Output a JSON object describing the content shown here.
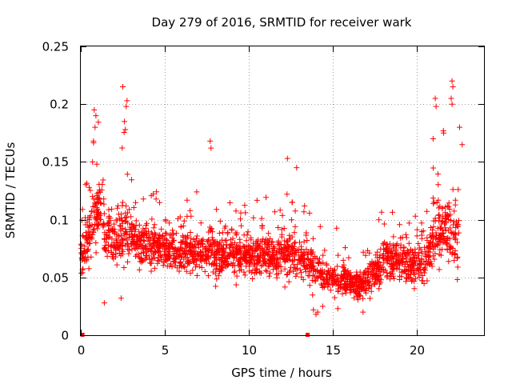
{
  "chart_data": {
    "type": "scatter",
    "title": "Day 279 of 2016, SRMTID for receiver wark",
    "xlabel": "GPS time / hours",
    "ylabel": "SRMTID / TECUs",
    "xlim": [
      0,
      24
    ],
    "ylim": [
      0,
      0.25
    ],
    "x_ticks": [
      0,
      5,
      10,
      15,
      20
    ],
    "x_tick_labels": [
      "0",
      "5",
      "10",
      "15",
      "20"
    ],
    "y_ticks": [
      0,
      0.05,
      0.1,
      0.15,
      0.2,
      0.25
    ],
    "y_tick_labels": [
      "0",
      "0.05",
      "0.1",
      "0.15",
      "0.2",
      "0.25"
    ],
    "grid": true,
    "marker": "+",
    "color": "#ff0000",
    "series": [
      {
        "name": "SRMTID",
        "note": "dense cloud of several thousand points; profile of typical level per hour approximated",
        "profile_x": [
          0,
          0.5,
          1,
          1.5,
          2,
          2.5,
          3,
          3.5,
          4,
          5,
          6,
          7,
          8,
          9,
          10,
          11,
          12,
          13,
          13.8,
          14.5,
          15,
          16,
          17,
          17.5,
          18,
          19,
          20,
          20.5,
          21,
          21.5,
          22,
          22.5
        ],
        "profile_y": [
          0.07,
          0.085,
          0.11,
          0.09,
          0.08,
          0.09,
          0.085,
          0.08,
          0.078,
          0.075,
          0.072,
          0.072,
          0.07,
          0.07,
          0.068,
          0.07,
          0.07,
          0.068,
          0.06,
          0.052,
          0.05,
          0.045,
          0.045,
          0.055,
          0.065,
          0.065,
          0.06,
          0.06,
          0.085,
          0.09,
          0.09,
          0.08
        ],
        "spread_y": [
          0.03,
          0.04,
          0.05,
          0.04,
          0.035,
          0.05,
          0.035,
          0.03,
          0.03,
          0.028,
          0.028,
          0.03,
          0.035,
          0.03,
          0.028,
          0.028,
          0.035,
          0.03,
          0.03,
          0.025,
          0.022,
          0.022,
          0.022,
          0.025,
          0.03,
          0.03,
          0.028,
          0.03,
          0.045,
          0.05,
          0.055,
          0.05
        ],
        "points_per_hour": 100,
        "peaks": [
          {
            "x": 0.8,
            "y": 0.195
          },
          {
            "x": 0.9,
            "y": 0.19
          },
          {
            "x": 0.85,
            "y": 0.18
          },
          {
            "x": 0.75,
            "y": 0.168
          },
          {
            "x": 2.5,
            "y": 0.215
          },
          {
            "x": 2.75,
            "y": 0.203
          },
          {
            "x": 2.7,
            "y": 0.198
          },
          {
            "x": 2.6,
            "y": 0.185
          },
          {
            "x": 2.65,
            "y": 0.178
          },
          {
            "x": 7.7,
            "y": 0.168
          },
          {
            "x": 7.75,
            "y": 0.162
          },
          {
            "x": 12.3,
            "y": 0.153
          },
          {
            "x": 12.85,
            "y": 0.145
          },
          {
            "x": 21.1,
            "y": 0.205
          },
          {
            "x": 21.15,
            "y": 0.198
          },
          {
            "x": 22.1,
            "y": 0.22
          },
          {
            "x": 22.15,
            "y": 0.215
          },
          {
            "x": 22.05,
            "y": 0.205
          },
          {
            "x": 22.1,
            "y": 0.2
          },
          {
            "x": 22.55,
            "y": 0.18
          },
          {
            "x": 21.6,
            "y": 0.175
          },
          {
            "x": 0.7,
            "y": 0.15
          },
          {
            "x": 0.95,
            "y": 0.148
          },
          {
            "x": 22.7,
            "y": 0.165
          }
        ],
        "lows": [
          {
            "x": 13.85,
            "y": 0.022
          },
          {
            "x": 14.0,
            "y": 0.018
          },
          {
            "x": 14.1,
            "y": 0.02
          },
          {
            "x": 14.4,
            "y": 0.025
          },
          {
            "x": 15.3,
            "y": 0.023
          },
          {
            "x": 16.8,
            "y": 0.02
          },
          {
            "x": 1.4,
            "y": 0.028
          },
          {
            "x": 2.4,
            "y": 0.032
          }
        ],
        "zero_markers": [
          {
            "x": 0.1,
            "y": 0
          },
          {
            "x": 13.5,
            "y": 0
          }
        ]
      }
    ]
  }
}
